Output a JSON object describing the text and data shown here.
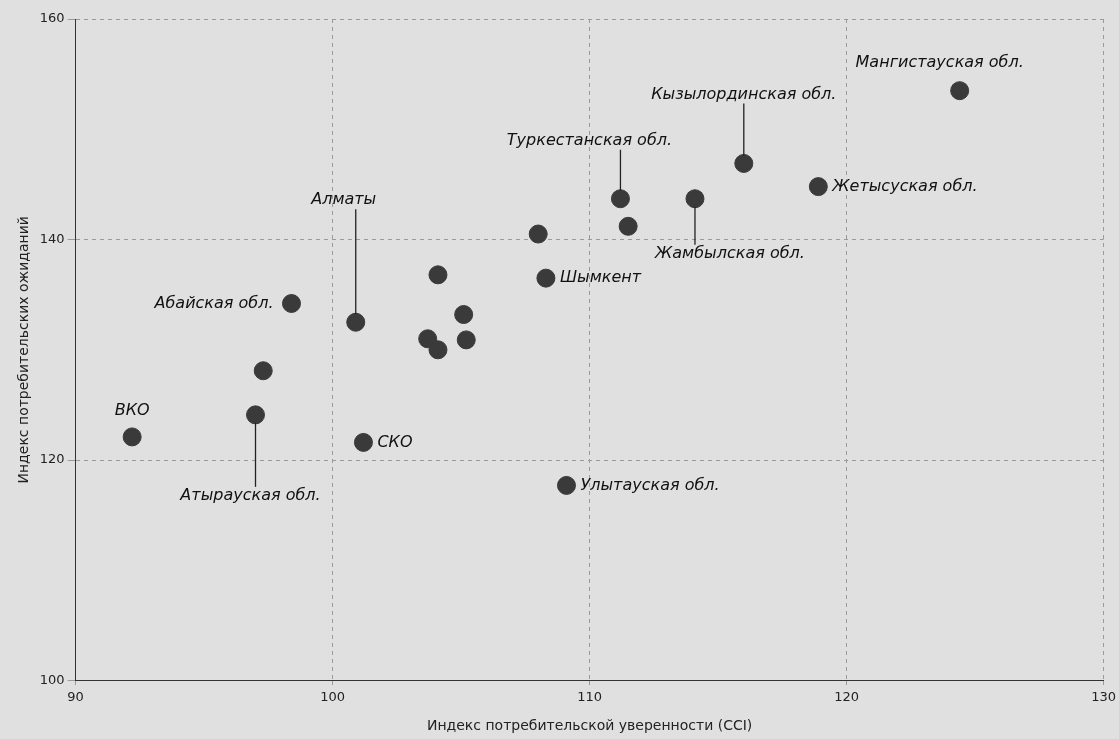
{
  "chart_data": {
    "type": "scatter",
    "xlabel": "Индекс потребительской уверенности (CCI)",
    "ylabel": "Индекс потребительских ожиданий",
    "xlim": [
      90,
      130
    ],
    "xticks": [
      90,
      100,
      110,
      120,
      130
    ],
    "ylim": [
      100,
      160
    ],
    "yticks": [
      100,
      120,
      140,
      160
    ],
    "grid": true,
    "marker": "circle",
    "series": [
      {
        "color": "#3a3a3a",
        "x": [
          92.2,
          97.0,
          97.3,
          98.4,
          100.9,
          101.2,
          103.7,
          104.1,
          104.1,
          105.1,
          105.2,
          108.0,
          108.3,
          109.1,
          111.2,
          111.5,
          114.1,
          116.0,
          118.9,
          124.4
        ],
        "values": [
          122.1,
          124.1,
          128.1,
          134.2,
          132.5,
          121.6,
          131.0,
          130.0,
          136.8,
          133.2,
          130.9,
          140.5,
          136.5,
          117.7,
          143.7,
          141.2,
          143.7,
          146.9,
          144.8,
          153.5
        ]
      }
    ],
    "annotations": [
      {
        "text": "ВКО",
        "x": 92.2,
        "y": 122.1
      },
      {
        "text": "Атырауская обл.",
        "x": 97.0,
        "y": 124.1
      },
      {
        "text": "Абайская обл.",
        "x": 98.4,
        "y": 134.2
      },
      {
        "text": "Алматы",
        "x": 100.9,
        "y": 132.5
      },
      {
        "text": "СКО",
        "x": 101.2,
        "y": 121.6
      },
      {
        "text": "Шымкент",
        "x": 108.3,
        "y": 136.5
      },
      {
        "text": "Улытауская обл.",
        "x": 109.1,
        "y": 117.7
      },
      {
        "text": "Туркестанская обл.",
        "x": 111.2,
        "y": 143.7
      },
      {
        "text": "Жамбылская обл.",
        "x": 114.1,
        "y": 143.7
      },
      {
        "text": "Кызылординская обл.",
        "x": 116.0,
        "y": 146.9
      },
      {
        "text": "Жетысуская обл.",
        "x": 118.9,
        "y": 144.8
      },
      {
        "text": "Мангистауская обл.",
        "x": 124.4,
        "y": 153.5
      }
    ]
  }
}
